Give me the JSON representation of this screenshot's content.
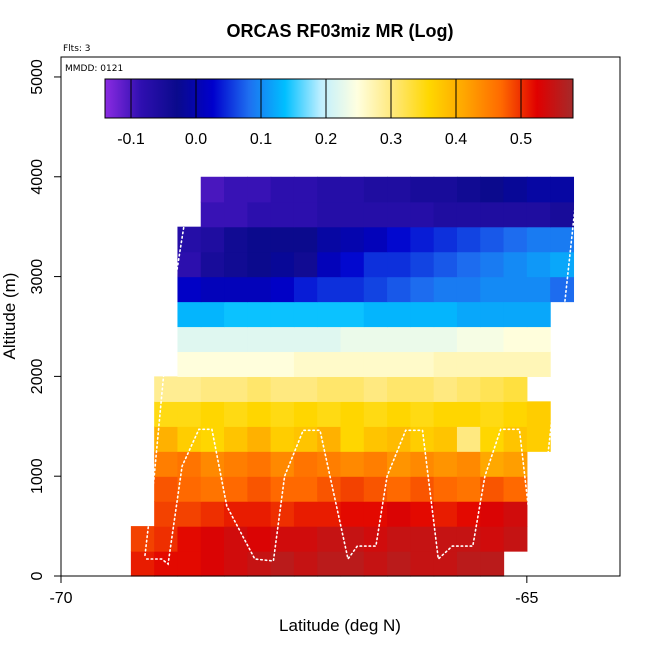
{
  "chart_data": {
    "type": "heatmap",
    "title": "ORCAS RF03miz MR (Log)",
    "xlabel": "Latitude (deg N)",
    "ylabel": "Altitude (m)",
    "flights_label": "Flts: 3",
    "date_label": "MMDD: 0121",
    "xlim": [
      -70,
      -64
    ],
    "ylim": [
      0,
      5200
    ],
    "xticks": [
      -70,
      -65
    ],
    "xtick_labels": [
      "-70",
      "-65"
    ],
    "yticks": [
      0,
      1000,
      2000,
      3000,
      4000,
      5000
    ],
    "ytick_labels": [
      "0",
      "1000",
      "2000",
      "3000",
      "4000",
      "5000"
    ],
    "colorbar": {
      "min": -0.14,
      "max": 0.58,
      "ticks": [
        -0.1,
        0.0,
        0.1,
        0.2,
        0.3,
        0.4,
        0.5
      ],
      "tick_labels": [
        "-0.1",
        "0.0",
        "0.1",
        "0.2",
        "0.3",
        "0.4",
        "0.5"
      ],
      "colors": [
        "#8B2BE2",
        "#2F0FB0",
        "#0A0A8C",
        "#0000CD",
        "#1E6FF0",
        "#00BFFF",
        "#BFEFFF",
        "#FFFFE0",
        "#FFE87A",
        "#FFD700",
        "#FFA500",
        "#FF6A00",
        "#E00000",
        "#A52A2A"
      ]
    },
    "cell_width_deg": 0.25,
    "layer_height_m": 250,
    "layers": [
      {
        "alt": 0,
        "x0": -69.25,
        "values": [
          0.51,
          0.52,
          0.52,
          0.53,
          0.54,
          0.55,
          0.56,
          0.55,
          0.56,
          0.56,
          0.55,
          0.56,
          0.55,
          0.55,
          0.56,
          0.56
        ]
      },
      {
        "alt": 250,
        "x0": -69.25,
        "values": [
          0.49,
          0.5,
          0.52,
          0.53,
          0.54,
          0.53,
          0.54,
          0.54,
          0.55,
          0.55,
          0.54,
          0.55,
          0.55,
          0.55,
          0.55,
          0.54,
          0.55
        ]
      },
      {
        "alt": 500,
        "x0": -69.0,
        "values": [
          0.49,
          0.49,
          0.5,
          0.51,
          0.51,
          0.5,
          0.51,
          0.51,
          0.52,
          0.52,
          0.53,
          0.52,
          0.51,
          0.52,
          0.53,
          0.54
        ]
      },
      {
        "alt": 750,
        "x0": -69.0,
        "values": [
          0.48,
          0.47,
          0.46,
          0.47,
          0.48,
          0.47,
          0.47,
          0.48,
          0.49,
          0.48,
          0.47,
          0.48,
          0.47,
          0.46,
          0.48,
          0.47
        ]
      },
      {
        "alt": 1000,
        "x0": -69.0,
        "values": [
          0.45,
          0.46,
          0.44,
          0.45,
          0.46,
          0.44,
          0.46,
          0.45,
          0.44,
          0.45,
          0.43,
          0.44,
          0.43,
          0.44,
          0.41,
          0.42
        ]
      },
      {
        "alt": 1250,
        "x0": -69.0,
        "values": [
          0.4,
          0.37,
          0.36,
          0.38,
          0.4,
          0.37,
          0.38,
          0.4,
          0.36,
          0.38,
          0.39,
          0.37,
          0.38,
          0.3,
          0.36,
          0.38,
          0.37
        ]
      },
      {
        "alt": 1500,
        "x0": -69.0,
        "values": [
          0.35,
          0.35,
          0.36,
          0.35,
          0.36,
          0.35,
          0.36,
          0.35,
          0.36,
          0.35,
          0.36,
          0.35,
          0.36,
          0.36,
          0.35,
          0.36,
          0.37
        ]
      },
      {
        "alt": 1750,
        "x0": -69.0,
        "values": [
          0.29,
          0.29,
          0.3,
          0.3,
          0.31,
          0.3,
          0.3,
          0.31,
          0.31,
          0.3,
          0.31,
          0.31,
          0.3,
          0.31,
          0.32,
          0.33
        ]
      },
      {
        "alt": 2000,
        "x0": -68.75,
        "values": [
          0.25,
          0.25,
          0.25,
          0.25,
          0.25,
          0.26,
          0.26,
          0.26,
          0.26,
          0.26,
          0.26,
          0.27,
          0.27,
          0.27,
          0.27,
          0.27
        ]
      },
      {
        "alt": 2250,
        "x0": -68.75,
        "values": [
          0.22,
          0.22,
          0.22,
          0.22,
          0.22,
          0.22,
          0.22,
          0.23,
          0.23,
          0.23,
          0.23,
          0.23,
          0.24,
          0.24,
          0.25,
          0.25
        ]
      },
      {
        "alt": 2500,
        "x0": -68.75,
        "values": [
          0.13,
          0.13,
          0.14,
          0.14,
          0.14,
          0.14,
          0.14,
          0.14,
          0.13,
          0.13,
          0.13,
          0.13,
          0.12,
          0.12,
          0.12,
          0.12
        ]
      },
      {
        "alt": 2750,
        "x0": -68.75,
        "values": [
          0.02,
          0.01,
          0.01,
          0.01,
          0.02,
          0.04,
          0.05,
          0.05,
          0.06,
          0.07,
          0.08,
          0.09,
          0.09,
          0.1,
          0.1,
          0.1,
          0.08
        ]
      },
      {
        "alt": 3000,
        "x0": -68.75,
        "values": [
          -0.08,
          -0.05,
          -0.04,
          -0.03,
          -0.02,
          -0.04,
          0.01,
          0.03,
          0.05,
          0.05,
          0.06,
          0.07,
          0.08,
          0.09,
          0.1,
          0.11,
          0.12
        ]
      },
      {
        "alt": 3250,
        "x0": -68.75,
        "values": [
          -0.07,
          -0.06,
          -0.04,
          -0.03,
          -0.03,
          -0.03,
          -0.01,
          0.0,
          0.01,
          0.03,
          0.04,
          0.05,
          0.06,
          0.07,
          0.08,
          0.09,
          0.09
        ]
      },
      {
        "alt": 3500,
        "x0": -68.5,
        "values": [
          -0.09,
          -0.09,
          -0.08,
          -0.08,
          -0.08,
          -0.07,
          -0.07,
          -0.07,
          -0.07,
          -0.07,
          -0.06,
          -0.06,
          -0.06,
          -0.06,
          -0.06,
          -0.05
        ]
      },
      {
        "alt": 3750,
        "x0": -68.5,
        "values": [
          -0.1,
          -0.09,
          -0.09,
          -0.08,
          -0.08,
          -0.07,
          -0.07,
          -0.06,
          -0.06,
          -0.05,
          -0.05,
          -0.04,
          -0.03,
          -0.02,
          -0.01,
          -0.01
        ]
      }
    ],
    "flight_tracks": [
      {
        "name": "track-1",
        "points": [
          [
            -69.08,
            170
          ],
          [
            -68.92,
            170
          ],
          [
            -68.85,
            120
          ],
          [
            -68.7,
            1100
          ],
          [
            -68.52,
            1470
          ],
          [
            -68.38,
            1470
          ],
          [
            -68.22,
            700
          ],
          [
            -67.92,
            170
          ],
          [
            -67.72,
            150
          ],
          [
            -67.6,
            1000
          ],
          [
            -67.4,
            1460
          ],
          [
            -67.22,
            1460
          ],
          [
            -66.92,
            170
          ],
          [
            -66.82,
            300
          ],
          [
            -66.62,
            300
          ],
          [
            -66.5,
            1000
          ],
          [
            -66.3,
            1460
          ],
          [
            -66.12,
            1460
          ],
          [
            -65.95,
            170
          ],
          [
            -65.8,
            300
          ],
          [
            -65.58,
            300
          ],
          [
            -65.45,
            1000
          ],
          [
            -65.28,
            1470
          ],
          [
            -65.08,
            1470
          ],
          [
            -64.92,
            170
          ],
          [
            -64.78,
            300
          ],
          [
            -64.6,
            350
          ],
          [
            -64.5,
            400
          ]
        ]
      },
      {
        "name": "track-2",
        "points": [
          [
            -68.6,
            3980
          ],
          [
            -68.8,
            2800
          ],
          [
            -68.9,
            2000
          ],
          [
            -69.0,
            1000
          ],
          [
            -69.1,
            200
          ]
        ]
      },
      {
        "name": "track-3",
        "points": [
          [
            -64.45,
            3980
          ],
          [
            -64.62,
            2500
          ],
          [
            -64.8,
            1000
          ],
          [
            -64.92,
            400
          ]
        ]
      }
    ]
  }
}
